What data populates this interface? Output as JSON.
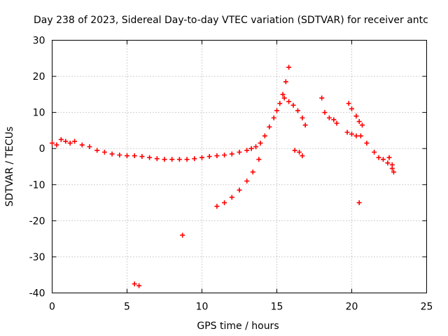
{
  "colors": {
    "data": "#ff0000",
    "background": "#ffffff",
    "axis": "#000000",
    "grid": "#a0a0a0"
  },
  "chart_data": {
    "type": "scatter",
    "title": "Day 238 of 2023, Sidereal Day-to-day VTEC variation (SDTVAR) for receiver antc",
    "xlabel": "GPS time / hours",
    "ylabel": "SDTVAR / TECUs",
    "xlim": [
      0,
      25
    ],
    "ylim": [
      -40,
      30
    ],
    "xticks": [
      0,
      5,
      10,
      15,
      20,
      25
    ],
    "yticks": [
      -40,
      -30,
      -20,
      -10,
      0,
      10,
      20,
      30
    ],
    "grid": true,
    "marker": "+",
    "series": [
      {
        "name": "SDTVAR",
        "color": "#ff0000",
        "x": [
          0.0,
          0.3,
          0.6,
          0.9,
          1.2,
          1.5,
          2.0,
          2.5,
          3.0,
          3.5,
          4.0,
          4.5,
          5.0,
          5.5,
          6.0,
          6.5,
          7.0,
          7.5,
          8.0,
          8.5,
          9.0,
          9.5,
          10.0,
          10.5,
          11.0,
          11.5,
          12.0,
          12.5,
          13.0,
          13.3,
          13.6,
          13.9,
          14.2,
          14.5,
          14.8,
          15.0,
          15.2,
          15.4,
          15.6,
          15.8,
          15.5,
          15.8,
          16.1,
          16.4,
          16.7,
          16.9,
          16.2,
          16.5,
          16.7,
          18.0,
          18.2,
          18.5,
          18.8,
          19.0,
          19.8,
          20.0,
          20.3,
          20.5,
          20.7,
          19.7,
          20.0,
          20.3,
          20.6,
          21.0,
          21.5,
          21.8,
          22.1,
          22.4,
          22.7,
          22.8,
          22.5,
          22.7,
          11.0,
          11.5,
          12.0,
          12.5,
          13.0,
          13.4,
          13.8,
          5.5,
          5.8,
          8.7,
          20.5
        ],
        "y": [
          1.5,
          1.0,
          2.5,
          2.0,
          1.5,
          2.0,
          1.0,
          0.5,
          -0.5,
          -1.0,
          -1.5,
          -1.8,
          -2.0,
          -2.0,
          -2.2,
          -2.5,
          -2.8,
          -3.0,
          -3.0,
          -3.0,
          -3.0,
          -2.8,
          -2.5,
          -2.2,
          -2.0,
          -1.8,
          -1.5,
          -1.0,
          -0.5,
          0.0,
          0.5,
          1.5,
          3.5,
          6.0,
          8.5,
          10.5,
          12.5,
          15.0,
          18.5,
          22.5,
          14.0,
          13.0,
          12.0,
          10.5,
          8.5,
          6.5,
          -0.5,
          -1.0,
          -2.0,
          14.0,
          10.0,
          8.5,
          8.0,
          7.0,
          12.5,
          11.0,
          9.0,
          7.5,
          6.5,
          4.5,
          4.0,
          3.5,
          3.5,
          1.5,
          -1.0,
          -2.5,
          -3.0,
          -4.0,
          -5.5,
          -6.5,
          -2.5,
          -4.5,
          -16.0,
          -15.0,
          -13.5,
          -11.5,
          -9.0,
          -6.5,
          -3.0,
          -37.5,
          -38.0,
          -24.0,
          -15.0
        ]
      }
    ]
  }
}
